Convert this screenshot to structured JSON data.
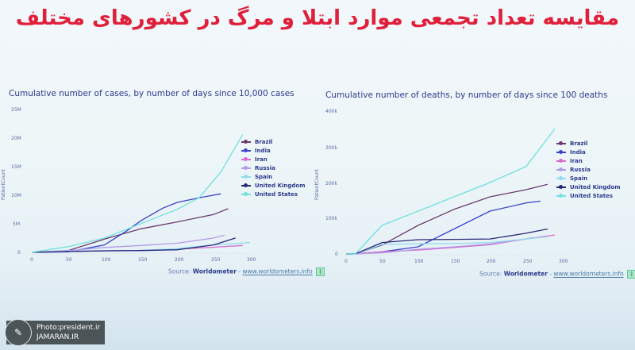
{
  "headline": "مقایسه تعداد تجمعی موارد ابتلا و مرگ در کشورهای مختلف",
  "watermark": {
    "line1": "Photo:president.ir",
    "line2": "JAMARAN.IR",
    "logo_icon": "jamaran-logo-icon"
  },
  "colors": {
    "Brazil": "#6b3a6e",
    "India": "#3a44c8",
    "Iran": "#d86ad0",
    "Russia": "#b39ae8",
    "Spain": "#8fdcec",
    "United Kingdom": "#27287a",
    "United States": "#6fe0de"
  },
  "left": {
    "title": "Cumulative number of cases, by number of days since 10,000 cases",
    "ylabel": "PatientCount",
    "yticks": [
      "25M",
      "20M",
      "15M",
      "10M",
      "5M",
      "0"
    ],
    "xticks": [
      "0",
      "50",
      "100",
      "150",
      "200",
      "250",
      "300"
    ],
    "source_prefix": "Source:",
    "source_name": "Worldometer",
    "source_sep": "-",
    "source_url": "www.worldometers.info",
    "legend": [
      "Brazil",
      "India",
      "Iran",
      "Russia",
      "Spain",
      "United Kingdom",
      "United States"
    ]
  },
  "right": {
    "title": "Cumulative number of deaths, by number of days since 100 deaths",
    "ylabel": "PatientCount",
    "yticks": [
      "400k",
      "300k",
      "200k",
      "100k",
      "0"
    ],
    "xticks": [
      "0",
      "50",
      "100",
      "150",
      "200",
      "250",
      "300"
    ],
    "source_prefix": "Source:",
    "source_name": "Worldometer",
    "source_sep": "-",
    "source_url": "www.worldometers.info",
    "legend": [
      "Brazil",
      "India",
      "Iran",
      "Russia",
      "Spain",
      "United Kingdom",
      "United States"
    ]
  },
  "chart_data": [
    {
      "type": "line",
      "title": "Cumulative number of cases, by number of days since 10,000 cases",
      "xlabel": "Days since 10,000 cases",
      "ylabel": "PatientCount",
      "xlim": [
        0,
        300
      ],
      "ylim": [
        0,
        25000000
      ],
      "grid": false,
      "legend_position": "upper right",
      "series": [
        {
          "name": "Brazil",
          "x": [
            0,
            50,
            100,
            150,
            200,
            250,
            270
          ],
          "values": [
            10000,
            300000,
            2300000,
            4100000,
            5300000,
            6600000,
            7600000
          ]
        },
        {
          "name": "India",
          "x": [
            0,
            50,
            100,
            130,
            150,
            180,
            200,
            230,
            260
          ],
          "values": [
            10000,
            100000,
            1300000,
            3700000,
            5500000,
            7700000,
            8700000,
            9500000,
            10200000
          ]
        },
        {
          "name": "Iran",
          "x": [
            0,
            50,
            100,
            150,
            200,
            250,
            290
          ],
          "values": [
            10000,
            150000,
            250000,
            350000,
            550000,
            900000,
            1200000
          ]
        },
        {
          "name": "Russia",
          "x": [
            0,
            50,
            100,
            150,
            200,
            250,
            265
          ],
          "values": [
            10000,
            300000,
            850000,
            1200000,
            1600000,
            2500000,
            3000000
          ]
        },
        {
          "name": "Spain",
          "x": [
            0,
            50,
            100,
            150,
            200,
            250,
            300
          ],
          "values": [
            10000,
            240000,
            280000,
            350000,
            650000,
            1300000,
            1700000
          ]
        },
        {
          "name": "United Kingdom",
          "x": [
            0,
            50,
            100,
            150,
            200,
            250,
            280
          ],
          "values": [
            10000,
            150000,
            280000,
            320000,
            450000,
            1300000,
            2500000
          ]
        },
        {
          "name": "United States",
          "x": [
            0,
            50,
            100,
            150,
            200,
            230,
            260,
            290
          ],
          "values": [
            10000,
            1000000,
            2500000,
            5000000,
            7500000,
            9500000,
            14000000,
            20500000
          ]
        }
      ]
    },
    {
      "type": "line",
      "title": "Cumulative number of deaths, by number of days since 100 deaths",
      "xlabel": "Days since 100 deaths",
      "ylabel": "PatientCount",
      "xlim": [
        0,
        300
      ],
      "ylim": [
        0,
        400000
      ],
      "grid": false,
      "legend_position": "upper right",
      "series": [
        {
          "name": "Brazil",
          "x": [
            0,
            13,
            50,
            100,
            150,
            200,
            250,
            280
          ],
          "values": [
            100,
            500,
            25000,
            80000,
            125000,
            160000,
            180000,
            195000
          ]
        },
        {
          "name": "India",
          "x": [
            0,
            13,
            50,
            100,
            150,
            200,
            250,
            270
          ],
          "values": [
            100,
            500,
            6000,
            20000,
            70000,
            120000,
            143000,
            148000
          ]
        },
        {
          "name": "Iran",
          "x": [
            0,
            13,
            50,
            100,
            150,
            200,
            250,
            290
          ],
          "values": [
            100,
            500,
            6000,
            11000,
            18000,
            26000,
            42000,
            53000
          ]
        },
        {
          "name": "Russia",
          "x": [
            0,
            13,
            50,
            100,
            150,
            200,
            250,
            260
          ],
          "values": [
            100,
            500,
            3000,
            13000,
            20000,
            28000,
            42000,
            46000
          ]
        },
        {
          "name": "Spain",
          "x": [
            0,
            13,
            50,
            100,
            150,
            200,
            250,
            280
          ],
          "values": [
            100,
            500,
            27000,
            28500,
            29000,
            32000,
            42000,
            48000
          ]
        },
        {
          "name": "United Kingdom",
          "x": [
            0,
            13,
            50,
            100,
            150,
            200,
            250,
            280
          ],
          "values": [
            100,
            500,
            32000,
            40000,
            41000,
            42000,
            58000,
            70000
          ]
        },
        {
          "name": "United States",
          "x": [
            0,
            13,
            50,
            100,
            150,
            200,
            250,
            290
          ],
          "values": [
            100,
            500,
            80000,
            120000,
            160000,
            200000,
            245000,
            350000
          ]
        }
      ]
    }
  ]
}
